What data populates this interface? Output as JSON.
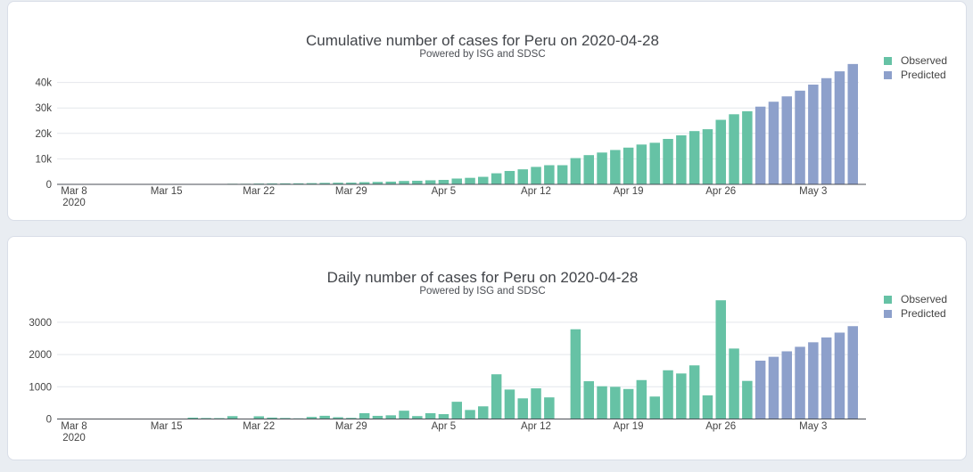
{
  "page": {
    "background": "#e9edf2",
    "card_background": "#ffffff"
  },
  "chart_data": [
    {
      "type": "bar",
      "title": "Cumulative number of cases for Peru on 2020-04-28",
      "subtitle": "Powered by ISG and SDSC",
      "legend": [
        {
          "label": "Observed",
          "color": "#66c2a5"
        },
        {
          "label": "Predicted",
          "color": "#8da0cb"
        }
      ],
      "ylabel": "",
      "xlabel": "",
      "ylim": [
        0,
        49000
      ],
      "grid": true,
      "legend_position": "right-top",
      "y_ticks": [
        {
          "label": "0",
          "value": 0
        },
        {
          "label": "10k",
          "value": 10000
        },
        {
          "label": "20k",
          "value": 20000
        },
        {
          "label": "30k",
          "value": 30000
        },
        {
          "label": "40k",
          "value": 40000
        }
      ],
      "x_ticks": [
        {
          "label": "Mar 8",
          "sub": "2020",
          "index": 0
        },
        {
          "label": "Mar 15",
          "index": 7
        },
        {
          "label": "Mar 22",
          "index": 14
        },
        {
          "label": "Mar 29",
          "index": 21
        },
        {
          "label": "Apr 5",
          "index": 28
        },
        {
          "label": "Apr 12",
          "index": 35
        },
        {
          "label": "Apr 19",
          "index": 42
        },
        {
          "label": "Apr 26",
          "index": 49
        },
        {
          "label": "May 3",
          "index": 56
        }
      ],
      "categories": [
        "2020-03-08",
        "2020-03-09",
        "2020-03-10",
        "2020-03-11",
        "2020-03-12",
        "2020-03-13",
        "2020-03-14",
        "2020-03-15",
        "2020-03-16",
        "2020-03-17",
        "2020-03-18",
        "2020-03-19",
        "2020-03-20",
        "2020-03-21",
        "2020-03-22",
        "2020-03-23",
        "2020-03-24",
        "2020-03-25",
        "2020-03-26",
        "2020-03-27",
        "2020-03-28",
        "2020-03-29",
        "2020-03-30",
        "2020-03-31",
        "2020-04-01",
        "2020-04-02",
        "2020-04-03",
        "2020-04-04",
        "2020-04-05",
        "2020-04-06",
        "2020-04-07",
        "2020-04-08",
        "2020-04-09",
        "2020-04-10",
        "2020-04-11",
        "2020-04-12",
        "2020-04-13",
        "2020-04-14",
        "2020-04-15",
        "2020-04-16",
        "2020-04-17",
        "2020-04-18",
        "2020-04-19",
        "2020-04-20",
        "2020-04-21",
        "2020-04-22",
        "2020-04-23",
        "2020-04-24",
        "2020-04-25",
        "2020-04-26",
        "2020-04-27",
        "2020-04-28",
        "2020-04-29",
        "2020-04-30",
        "2020-05-01",
        "2020-05-02",
        "2020-05-03",
        "2020-05-04",
        "2020-05-05",
        "2020-05-06"
      ],
      "series": [
        {
          "name": "Observed",
          "color": "#66c2a5",
          "start_index": 0,
          "values": [
            1,
            6,
            7,
            11,
            11,
            15,
            28,
            38,
            43,
            86,
            117,
            145,
            234,
            234,
            318,
            363,
            395,
            416,
            480,
            580,
            635,
            671,
            852,
            950,
            1065,
            1323,
            1414,
            1595,
            1746,
            2281,
            2561,
            2954,
            4342,
            5256,
            5897,
            6848,
            7519,
            7519,
            10303,
            11475,
            12491,
            13489,
            14420,
            15628,
            16325,
            17837,
            19250,
            20914,
            21648,
            25331,
            27517,
            28699
          ]
        },
        {
          "name": "Predicted",
          "color": "#8da0cb",
          "start_index": 52,
          "values": [
            30509,
            32439,
            34539,
            36779,
            39159,
            41689,
            44369,
            47249
          ]
        }
      ]
    },
    {
      "type": "bar",
      "title": "Daily number of cases for Peru on 2020-04-28",
      "subtitle": "Powered by ISG and SDSC",
      "legend": [
        {
          "label": "Observed",
          "color": "#66c2a5"
        },
        {
          "label": "Predicted",
          "color": "#8da0cb"
        }
      ],
      "ylabel": "",
      "xlabel": "",
      "ylim": [
        0,
        3900
      ],
      "grid": true,
      "legend_position": "right-top",
      "y_ticks": [
        {
          "label": "0",
          "value": 0
        },
        {
          "label": "1000",
          "value": 1000
        },
        {
          "label": "2000",
          "value": 2000
        },
        {
          "label": "3000",
          "value": 3000
        }
      ],
      "x_ticks": [
        {
          "label": "Mar 8",
          "sub": "2020",
          "index": 0
        },
        {
          "label": "Mar 15",
          "index": 7
        },
        {
          "label": "Mar 22",
          "index": 14
        },
        {
          "label": "Mar 29",
          "index": 21
        },
        {
          "label": "Apr 5",
          "index": 28
        },
        {
          "label": "Apr 12",
          "index": 35
        },
        {
          "label": "Apr 19",
          "index": 42
        },
        {
          "label": "Apr 26",
          "index": 49
        },
        {
          "label": "May 3",
          "index": 56
        }
      ],
      "categories": [
        "2020-03-08",
        "2020-03-09",
        "2020-03-10",
        "2020-03-11",
        "2020-03-12",
        "2020-03-13",
        "2020-03-14",
        "2020-03-15",
        "2020-03-16",
        "2020-03-17",
        "2020-03-18",
        "2020-03-19",
        "2020-03-20",
        "2020-03-21",
        "2020-03-22",
        "2020-03-23",
        "2020-03-24",
        "2020-03-25",
        "2020-03-26",
        "2020-03-27",
        "2020-03-28",
        "2020-03-29",
        "2020-03-30",
        "2020-03-31",
        "2020-04-01",
        "2020-04-02",
        "2020-04-03",
        "2020-04-04",
        "2020-04-05",
        "2020-04-06",
        "2020-04-07",
        "2020-04-08",
        "2020-04-09",
        "2020-04-10",
        "2020-04-11",
        "2020-04-12",
        "2020-04-13",
        "2020-04-14",
        "2020-04-15",
        "2020-04-16",
        "2020-04-17",
        "2020-04-18",
        "2020-04-19",
        "2020-04-20",
        "2020-04-21",
        "2020-04-22",
        "2020-04-23",
        "2020-04-24",
        "2020-04-25",
        "2020-04-26",
        "2020-04-27",
        "2020-04-28",
        "2020-04-29",
        "2020-04-30",
        "2020-05-01",
        "2020-05-02",
        "2020-05-03",
        "2020-05-04",
        "2020-05-05",
        "2020-05-06"
      ],
      "series": [
        {
          "name": "Observed",
          "color": "#66c2a5",
          "start_index": 0,
          "values": [
            1,
            5,
            1,
            4,
            0,
            4,
            13,
            10,
            5,
            43,
            31,
            28,
            89,
            0,
            84,
            45,
            32,
            21,
            64,
            100,
            55,
            36,
            181,
            98,
            115,
            258,
            91,
            181,
            151,
            535,
            280,
            393,
            1388,
            914,
            641,
            951,
            671,
            0,
            2784,
            1172,
            1016,
            998,
            931,
            1208,
            697,
            1512,
            1413,
            1664,
            734,
            3683,
            2186,
            1182
          ]
        },
        {
          "name": "Predicted",
          "color": "#8da0cb",
          "start_index": 52,
          "values": [
            1810,
            1930,
            2100,
            2240,
            2380,
            2530,
            2680,
            2880
          ]
        }
      ]
    }
  ]
}
